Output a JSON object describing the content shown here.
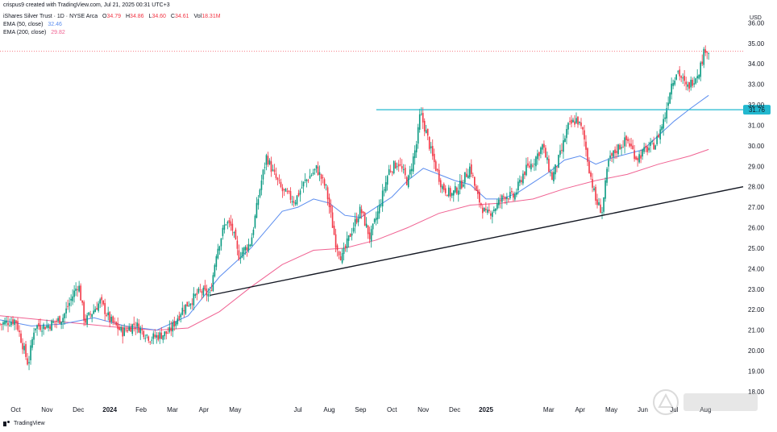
{
  "header": {
    "created_by": "crispus9 created with TradingView.com, Jul 21, 2025 00:31 UTC+3"
  },
  "legend": {
    "symbol": "iShares Silver Trust · 1D · NYSE Arca",
    "ohlc": [
      {
        "label": "O",
        "value": "34.79"
      },
      {
        "label": "H",
        "value": "34.86"
      },
      {
        "label": "L",
        "value": "34.60"
      },
      {
        "label": "C",
        "value": "34.61"
      }
    ],
    "volume": {
      "label": "Vol",
      "value": "18.31M"
    },
    "ema50": {
      "label": "EMA (50, close)",
      "value": "32.46",
      "color": "#5b8def"
    },
    "ema200": {
      "label": "EMA (200, close)",
      "value": "29.82",
      "color": "#f06292"
    }
  },
  "footer": {
    "brand": "TradingView"
  },
  "chart_data": {
    "type": "candlestick",
    "currency": "USD",
    "ylim": [
      17.6,
      36.8
    ],
    "y_ticks": [
      "18.00",
      "19.00",
      "20.00",
      "21.00",
      "22.00",
      "23.00",
      "24.00",
      "25.00",
      "26.00",
      "27.00",
      "28.00",
      "29.00",
      "30.00",
      "31.00",
      "32.00",
      "33.00",
      "34.00",
      "35.00",
      "36.00"
    ],
    "x_ticks": [
      "Oct",
      "Nov",
      "Dec",
      "2024",
      "Feb",
      "Mar",
      "Apr",
      "May",
      "Jul",
      "Aug",
      "Sep",
      "Oct",
      "Nov",
      "Dec",
      "2025",
      "Mar",
      "Apr",
      "May",
      "Jun",
      "Jul",
      "Aug"
    ],
    "x_tick_positions": [
      0.5,
      1.5,
      2.5,
      3.5,
      4.5,
      5.5,
      6.5,
      7.5,
      9.5,
      10.5,
      11.5,
      12.5,
      13.5,
      14.5,
      15.5,
      17.5,
      18.5,
      19.5,
      20.5,
      21.5,
      22.5
    ],
    "x_range": [
      0,
      23.7
    ],
    "price_path": [
      [
        0,
        21.3
      ],
      [
        0.5,
        21.5
      ],
      [
        0.9,
        19.3
      ],
      [
        1.1,
        21.2
      ],
      [
        1.5,
        21.2
      ],
      [
        2.0,
        21.6
      ],
      [
        2.5,
        23.3
      ],
      [
        2.7,
        21.4
      ],
      [
        3.2,
        22.4
      ],
      [
        3.5,
        21.5
      ],
      [
        3.9,
        20.9
      ],
      [
        4.3,
        21.3
      ],
      [
        4.8,
        20.6
      ],
      [
        5.4,
        20.9
      ],
      [
        5.8,
        22.0
      ],
      [
        6.4,
        22.9
      ],
      [
        6.7,
        22.7
      ],
      [
        6.9,
        24.8
      ],
      [
        7.2,
        26.3
      ],
      [
        7.4,
        26.0
      ],
      [
        7.6,
        24.6
      ],
      [
        8.0,
        25.3
      ],
      [
        8.3,
        28.0
      ],
      [
        8.5,
        29.5
      ],
      [
        8.7,
        28.7
      ],
      [
        9.0,
        27.8
      ],
      [
        9.4,
        27.3
      ],
      [
        9.7,
        28.2
      ],
      [
        10.1,
        28.9
      ],
      [
        10.4,
        27.9
      ],
      [
        10.7,
        25.3
      ],
      [
        10.9,
        24.5
      ],
      [
        11.2,
        25.8
      ],
      [
        11.5,
        26.9
      ],
      [
        11.8,
        25.5
      ],
      [
        12.1,
        27.0
      ],
      [
        12.4,
        28.8
      ],
      [
        12.7,
        29.2
      ],
      [
        13.0,
        28.2
      ],
      [
        13.3,
        30.2
      ],
      [
        13.4,
        31.6
      ],
      [
        13.6,
        30.6
      ],
      [
        13.8,
        29.4
      ],
      [
        14.1,
        28.0
      ],
      [
        14.4,
        27.6
      ],
      [
        14.7,
        28.1
      ],
      [
        15.0,
        29.0
      ],
      [
        15.2,
        27.6
      ],
      [
        15.5,
        26.6
      ],
      [
        15.8,
        27.0
      ],
      [
        16.1,
        27.6
      ],
      [
        16.4,
        27.5
      ],
      [
        16.7,
        28.7
      ],
      [
        17.0,
        29.2
      ],
      [
        17.3,
        30.0
      ],
      [
        17.6,
        28.4
      ],
      [
        17.9,
        29.7
      ],
      [
        18.1,
        30.9
      ],
      [
        18.4,
        31.3
      ],
      [
        18.6,
        30.6
      ],
      [
        18.8,
        28.8
      ],
      [
        19.0,
        27.3
      ],
      [
        19.2,
        26.8
      ],
      [
        19.4,
        29.2
      ],
      [
        19.7,
        29.9
      ],
      [
        20.0,
        30.3
      ],
      [
        20.3,
        29.4
      ],
      [
        20.6,
        29.8
      ],
      [
        20.9,
        30.1
      ],
      [
        21.2,
        31.4
      ],
      [
        21.4,
        33.0
      ],
      [
        21.6,
        33.7
      ],
      [
        21.9,
        32.8
      ],
      [
        22.1,
        33.2
      ],
      [
        22.3,
        33.7
      ],
      [
        22.5,
        34.8
      ],
      [
        22.6,
        34.6
      ]
    ],
    "ema50": [
      [
        0,
        21.5
      ],
      [
        1.0,
        21.2
      ],
      [
        2.0,
        21.3
      ],
      [
        3.0,
        21.6
      ],
      [
        4.0,
        21.2
      ],
      [
        5.0,
        21.0
      ],
      [
        6.0,
        21.7
      ],
      [
        7.0,
        23.6
      ],
      [
        8.0,
        25.0
      ],
      [
        9.0,
        26.8
      ],
      [
        9.5,
        27.0
      ],
      [
        10.0,
        27.4
      ],
      [
        10.5,
        27.2
      ],
      [
        11.0,
        26.6
      ],
      [
        11.5,
        26.5
      ],
      [
        12.0,
        27.0
      ],
      [
        12.5,
        27.5
      ],
      [
        13.0,
        28.3
      ],
      [
        13.5,
        28.9
      ],
      [
        14.0,
        28.6
      ],
      [
        14.5,
        28.3
      ],
      [
        15.0,
        28.1
      ],
      [
        15.5,
        27.4
      ],
      [
        16.0,
        27.4
      ],
      [
        16.5,
        27.7
      ],
      [
        17.0,
        28.2
      ],
      [
        17.5,
        28.7
      ],
      [
        18.0,
        29.3
      ],
      [
        18.5,
        29.5
      ],
      [
        19.0,
        29.1
      ],
      [
        19.5,
        29.4
      ],
      [
        20.0,
        29.6
      ],
      [
        20.5,
        29.8
      ],
      [
        21.0,
        30.5
      ],
      [
        21.5,
        31.2
      ],
      [
        22.0,
        31.8
      ],
      [
        22.6,
        32.46
      ]
    ],
    "ema200": [
      [
        0,
        21.7
      ],
      [
        2.0,
        21.4
      ],
      [
        4.0,
        21.1
      ],
      [
        5.0,
        21.0
      ],
      [
        6.0,
        21.1
      ],
      [
        7.0,
        21.9
      ],
      [
        8.0,
        23.1
      ],
      [
        9.0,
        24.2
      ],
      [
        10.0,
        24.9
      ],
      [
        11.0,
        25.0
      ],
      [
        12.0,
        25.4
      ],
      [
        13.0,
        26.0
      ],
      [
        14.0,
        26.7
      ],
      [
        15.0,
        27.1
      ],
      [
        16.0,
        27.2
      ],
      [
        17.0,
        27.4
      ],
      [
        18.0,
        27.9
      ],
      [
        19.0,
        28.3
      ],
      [
        20.0,
        28.6
      ],
      [
        21.0,
        29.1
      ],
      [
        22.0,
        29.5
      ],
      [
        22.6,
        29.82
      ]
    ],
    "trendline_support": {
      "x": [
        6.7,
        23.7
      ],
      "y": [
        22.7,
        28.0
      ],
      "color": "#131722"
    },
    "horizontal_resistance": {
      "value": 31.76,
      "label": "31.76",
      "x_start": 12.0,
      "color": "#22b8cf"
    },
    "last_price_line": {
      "value": 34.61,
      "color": "#f23645"
    },
    "colors": {
      "up": "#089981",
      "down": "#f23645"
    }
  }
}
